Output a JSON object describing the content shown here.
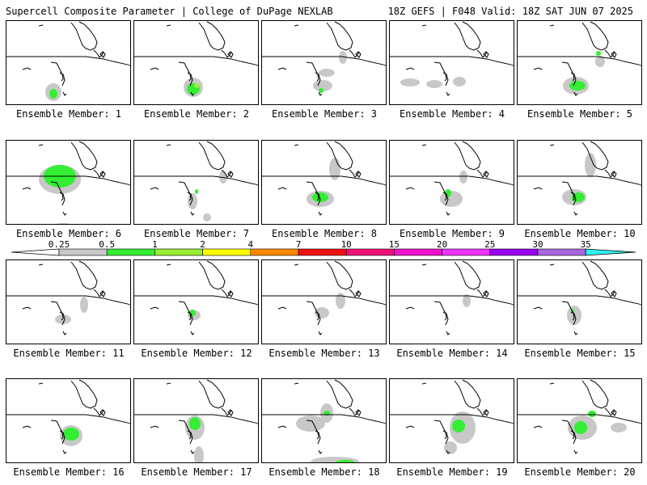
{
  "header": {
    "title": "Supercell Composite Parameter | College of DuPage NEXLAB",
    "run_info": "18Z GEFS | F048 Valid: 18Z SAT JUN 07 2025"
  },
  "colorbar": {
    "ticks": [
      "0.25",
      "0.5",
      "1",
      "2",
      "4",
      "7",
      "10",
      "15",
      "20",
      "25",
      "30",
      "35"
    ],
    "colors": [
      "#ffffff",
      "#c8c8c8",
      "#33ee33",
      "#99ee33",
      "#ffff00",
      "#ff8800",
      "#ee1111",
      "#ee1177",
      "#ee11cc",
      "#ee33ff",
      "#9900ee",
      "#aa66dd",
      "#33eeee"
    ]
  },
  "panels": [
    {
      "label": "Ensemble Member: 1",
      "gray": [
        [
          58,
          88,
          10,
          11
        ]
      ],
      "green": [
        [
          58,
          90,
          5,
          6
        ]
      ]
    },
    {
      "label": "Ensemble Member: 2",
      "gray": [
        [
          73,
          82,
          12,
          12
        ]
      ],
      "green": [
        [
          73,
          84,
          8,
          7
        ],
        [
          77,
          80,
          3,
          3,
          "#99ee33"
        ]
      ]
    },
    {
      "label": "Ensemble Member: 3",
      "gray": [
        [
          75,
          80,
          12,
          7
        ],
        [
          80,
          64,
          10,
          5
        ],
        [
          100,
          45,
          5,
          8
        ],
        [
          100,
          108,
          6,
          4
        ]
      ],
      "green": [
        [
          73,
          86,
          3,
          3
        ]
      ]
    },
    {
      "label": "Ensemble Member: 4",
      "gray": [
        [
          25,
          76,
          12,
          5
        ],
        [
          55,
          78,
          10,
          5
        ],
        [
          86,
          75,
          8,
          6
        ]
      ],
      "green": []
    },
    {
      "label": "Ensemble Member: 5",
      "gray": [
        [
          72,
          80,
          16,
          11
        ],
        [
          102,
          50,
          6,
          7
        ]
      ],
      "green": [
        [
          74,
          80,
          10,
          6
        ],
        [
          100,
          40,
          3,
          3
        ]
      ]
    },
    {
      "label": "Ensemble Member: 6",
      "gray": [
        [
          66,
          48,
          26,
          18
        ],
        [
          70,
          106,
          12,
          4
        ]
      ],
      "green": [
        [
          66,
          44,
          20,
          14
        ]
      ]
    },
    {
      "label": "Ensemble Member: 7",
      "gray": [
        [
          110,
          45,
          5,
          8
        ],
        [
          72,
          75,
          6,
          10
        ],
        [
          90,
          95,
          5,
          5
        ]
      ],
      "green": [
        [
          77,
          63,
          2,
          3
        ]
      ]
    },
    {
      "label": "Ensemble Member: 8",
      "gray": [
        [
          72,
          72,
          17,
          10
        ],
        [
          90,
          35,
          7,
          14
        ]
      ],
      "green": [
        [
          72,
          70,
          10,
          6
        ]
      ]
    },
    {
      "label": "Ensemble Member: 9",
      "gray": [
        [
          76,
          72,
          14,
          10
        ],
        [
          91,
          45,
          5,
          8
        ]
      ],
      "green": [
        [
          72,
          65,
          4,
          5
        ]
      ]
    },
    {
      "label": "Ensemble Member: 10",
      "gray": [
        [
          70,
          70,
          15,
          10
        ],
        [
          90,
          30,
          7,
          15
        ]
      ],
      "green": [
        [
          75,
          70,
          8,
          6
        ]
      ]
    },
    {
      "label": "Ensemble Member: 11",
      "gray": [
        [
          70,
          73,
          10,
          6
        ],
        [
          96,
          55,
          5,
          10
        ]
      ],
      "green": []
    },
    {
      "label": "Ensemble Member: 12",
      "gray": [
        [
          74,
          68,
          8,
          6
        ]
      ],
      "green": [
        [
          72,
          65,
          4,
          4
        ]
      ]
    },
    {
      "label": "Ensemble Member: 13",
      "gray": [
        [
          74,
          65,
          9,
          7
        ],
        [
          97,
          50,
          6,
          10
        ]
      ],
      "green": []
    },
    {
      "label": "Ensemble Member: 14",
      "gray": [
        [
          95,
          50,
          5,
          8
        ]
      ],
      "green": []
    },
    {
      "label": "Ensemble Member: 15",
      "gray": [
        [
          70,
          68,
          9,
          12
        ]
      ],
      "green": [
        [
          68,
          63,
          2,
          3
        ]
      ]
    },
    {
      "label": "Ensemble Member: 16",
      "gray": [
        [
          80,
          70,
          14,
          13
        ]
      ],
      "green": [
        [
          80,
          68,
          10,
          8
        ]
      ]
    },
    {
      "label": "Ensemble Member: 17",
      "gray": [
        [
          75,
          60,
          12,
          15
        ],
        [
          80,
          95,
          6,
          12
        ]
      ],
      "green": [
        [
          75,
          55,
          7,
          8
        ]
      ]
    },
    {
      "label": "Ensemble Member: 18",
      "gray": [
        [
          60,
          55,
          18,
          10
        ],
        [
          80,
          42,
          8,
          12
        ],
        [
          90,
          102,
          30,
          6
        ]
      ],
      "green": [
        [
          80,
          42,
          4,
          3
        ],
        [
          103,
          103,
          12,
          3
        ]
      ]
    },
    {
      "label": "Ensemble Member: 19",
      "gray": [
        [
          90,
          60,
          16,
          20
        ],
        [
          75,
          85,
          8,
          8
        ]
      ],
      "green": [
        [
          85,
          58,
          8,
          8
        ]
      ]
    },
    {
      "label": "Ensemble Member: 20",
      "gray": [
        [
          80,
          60,
          18,
          15
        ],
        [
          125,
          60,
          10,
          6
        ]
      ],
      "green": [
        [
          78,
          60,
          8,
          8
        ],
        [
          92,
          43,
          5,
          4
        ]
      ]
    }
  ]
}
